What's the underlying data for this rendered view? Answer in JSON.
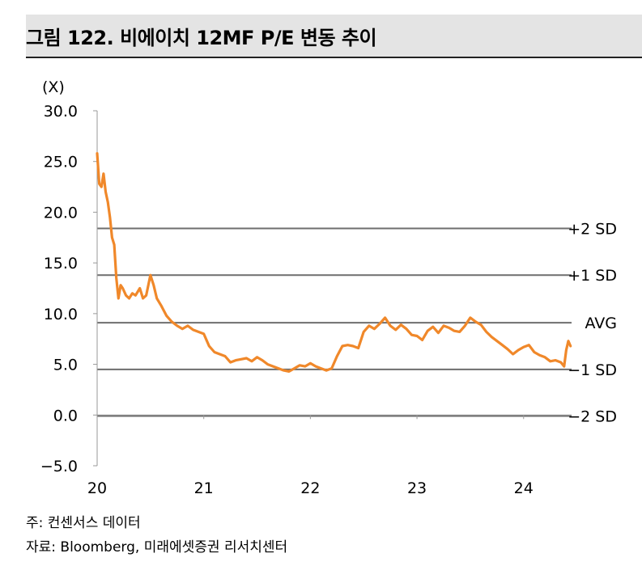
{
  "title": "그림 122. 비에이치 12MF P/E 변동 추이",
  "notes": {
    "note1": "주: 컨센서스 데이터",
    "note2": "자료: Bloomberg, 미래에셋증권 리서치센터"
  },
  "chart_data": {
    "type": "line",
    "ylabel": "(X)",
    "ylim": [
      -5,
      30
    ],
    "xlim": [
      2020.0,
      2024.45
    ],
    "yticks": [
      {
        "value": 30,
        "label": "30.0"
      },
      {
        "value": 25,
        "label": "25.0"
      },
      {
        "value": 20,
        "label": "20.0"
      },
      {
        "value": 15,
        "label": "15.0"
      },
      {
        "value": 10,
        "label": "10.0"
      },
      {
        "value": 5,
        "label": "5.0"
      },
      {
        "value": 0,
        "label": "0.0"
      },
      {
        "value": -5,
        "label": "−5.0"
      }
    ],
    "xticks": [
      {
        "value": 2020,
        "label": "20"
      },
      {
        "value": 2021,
        "label": "21"
      },
      {
        "value": 2022,
        "label": "22"
      },
      {
        "value": 2023,
        "label": "23"
      },
      {
        "value": 2024,
        "label": "24"
      }
    ],
    "reference_lines": [
      {
        "label": "+2 SD",
        "value": 18.4
      },
      {
        "label": "+1 SD",
        "value": 13.8
      },
      {
        "label": "AVG",
        "value": 9.1
      },
      {
        "label": "−1 SD",
        "value": 4.5
      },
      {
        "label": "−2 SD",
        "value": -0.1
      }
    ],
    "series": [
      {
        "color": "#f0882a",
        "x": [
          2020.0,
          2020.02,
          2020.04,
          2020.06,
          2020.08,
          2020.1,
          2020.12,
          2020.14,
          2020.16,
          2020.18,
          2020.2,
          2020.22,
          2020.24,
          2020.27,
          2020.3,
          2020.33,
          2020.36,
          2020.4,
          2020.43,
          2020.46,
          2020.5,
          2020.53,
          2020.56,
          2020.6,
          2020.65,
          2020.7,
          2020.75,
          2020.8,
          2020.85,
          2020.9,
          2020.95,
          2021.0,
          2021.05,
          2021.1,
          2021.15,
          2021.2,
          2021.25,
          2021.3,
          2021.35,
          2021.4,
          2021.45,
          2021.5,
          2021.55,
          2021.6,
          2021.65,
          2021.7,
          2021.75,
          2021.8,
          2021.85,
          2021.9,
          2021.95,
          2022.0,
          2022.05,
          2022.1,
          2022.15,
          2022.2,
          2022.25,
          2022.3,
          2022.35,
          2022.4,
          2022.45,
          2022.5,
          2022.55,
          2022.6,
          2022.65,
          2022.7,
          2022.75,
          2022.8,
          2022.85,
          2022.9,
          2022.95,
          2023.0,
          2023.05,
          2023.1,
          2023.15,
          2023.2,
          2023.25,
          2023.3,
          2023.35,
          2023.4,
          2023.45,
          2023.5,
          2023.55,
          2023.6,
          2023.65,
          2023.7,
          2023.75,
          2023.8,
          2023.85,
          2023.9,
          2023.95,
          2024.0,
          2024.05,
          2024.1,
          2024.15,
          2024.2,
          2024.25,
          2024.3,
          2024.35,
          2024.38,
          2024.4,
          2024.42,
          2024.44
        ],
        "y": [
          25.8,
          22.8,
          22.5,
          23.8,
          22.0,
          21.0,
          19.5,
          17.5,
          16.8,
          13.5,
          11.5,
          12.8,
          12.5,
          11.8,
          11.5,
          12.0,
          11.8,
          12.5,
          11.5,
          11.8,
          13.8,
          12.8,
          11.5,
          10.8,
          9.8,
          9.2,
          8.8,
          8.5,
          8.8,
          8.4,
          8.2,
          8.0,
          6.8,
          6.2,
          6.0,
          5.8,
          5.2,
          5.4,
          5.5,
          5.6,
          5.3,
          5.7,
          5.4,
          5.0,
          4.8,
          4.6,
          4.4,
          4.3,
          4.6,
          4.9,
          4.8,
          5.1,
          4.8,
          4.6,
          4.4,
          4.6,
          5.8,
          6.8,
          6.9,
          6.8,
          6.6,
          8.2,
          8.8,
          8.5,
          9.0,
          9.6,
          8.8,
          8.4,
          8.9,
          8.5,
          7.9,
          7.8,
          7.4,
          8.3,
          8.7,
          8.1,
          8.8,
          8.6,
          8.3,
          8.2,
          8.8,
          9.6,
          9.2,
          8.9,
          8.2,
          7.7,
          7.3,
          6.9,
          6.5,
          6.0,
          6.4,
          6.7,
          6.9,
          6.2,
          5.9,
          5.7,
          5.3,
          5.4,
          5.2,
          4.8,
          6.4,
          7.3,
          6.8
        ]
      }
    ]
  }
}
